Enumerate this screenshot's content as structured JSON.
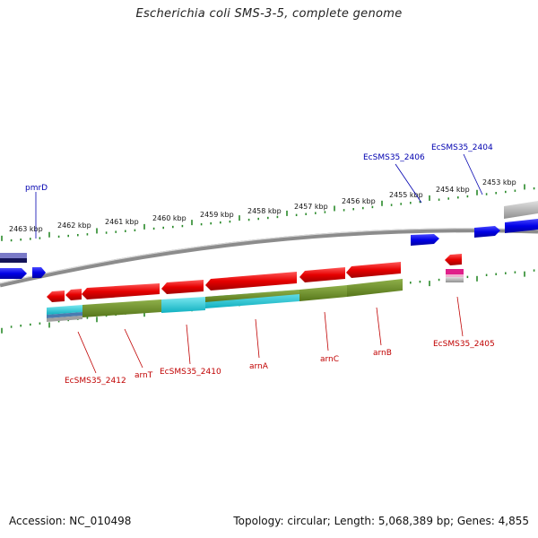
{
  "title": "Escherichia coli SMS-3-5, complete genome",
  "footer": {
    "accession": "Accession: NC_010498",
    "summary": "Topology: circular; Length: 5,068,389 bp; Genes: 4,855"
  },
  "colors": {
    "forward_gene": "#0000e6",
    "reverse_gene": "#e60000",
    "forward_label": "#0000b0",
    "reverse_label": "#c00000",
    "tick": "#2a8a2a",
    "backbone": "#8c8c8c",
    "olive_block": "#6b8e23",
    "cyan_block": "#18c8d8",
    "pink_block": "#e0208a"
  },
  "ticks": [
    {
      "label": "2463 kbp"
    },
    {
      "label": "2462 kbp"
    },
    {
      "label": "2461 kbp"
    },
    {
      "label": "2460 kbp"
    },
    {
      "label": "2459 kbp"
    },
    {
      "label": "2458 kbp"
    },
    {
      "label": "2457 kbp"
    },
    {
      "label": "2456 kbp"
    },
    {
      "label": "2455 kbp"
    },
    {
      "label": "2454 kbp"
    },
    {
      "label": "2453 kbp"
    }
  ],
  "forward_gene_labels": [
    {
      "name": "pmrD"
    },
    {
      "name": "EcSMS35_2406"
    },
    {
      "name": "EcSMS35_2404"
    }
  ],
  "reverse_gene_labels": [
    {
      "name": "EcSMS35_2412"
    },
    {
      "name": "arnT"
    },
    {
      "name": "EcSMS35_2410"
    },
    {
      "name": "arnA"
    },
    {
      "name": "arnC"
    },
    {
      "name": "arnB"
    },
    {
      "name": "EcSMS35_2405"
    }
  ]
}
